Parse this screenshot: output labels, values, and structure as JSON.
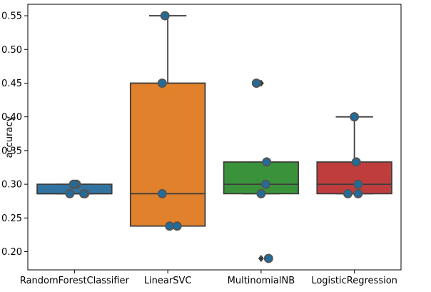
{
  "chart_data": {
    "type": "box",
    "title": "",
    "xlabel": "",
    "ylabel": "accuracy",
    "ylim": [
      0.173,
      0.567
    ],
    "yticks": [
      0.2,
      0.25,
      0.3,
      0.35,
      0.4,
      0.45,
      0.5,
      0.55
    ],
    "ytick_labels": [
      "0.20",
      "0.25",
      "0.30",
      "0.35",
      "0.40",
      "0.45",
      "0.50",
      "0.55"
    ],
    "categories": [
      "RandomForestClassifier",
      "LinearSVC",
      "MultinomialNB",
      "LogisticRegression"
    ],
    "boxes": [
      {
        "q1": 0.286,
        "median": 0.286,
        "q3": 0.3,
        "whisker_low": 0.286,
        "whisker_high": 0.3,
        "outliers": [],
        "color": "#3274a1"
      },
      {
        "q1": 0.238,
        "median": 0.286,
        "q3": 0.45,
        "whisker_low": 0.238,
        "whisker_high": 0.55,
        "outliers": [],
        "color": "#e1812c"
      },
      {
        "q1": 0.286,
        "median": 0.3,
        "q3": 0.333,
        "whisker_low": 0.286,
        "whisker_high": 0.333,
        "outliers": [
          0.45,
          0.19
        ],
        "color": "#3a923a"
      },
      {
        "q1": 0.286,
        "median": 0.3,
        "q3": 0.333,
        "whisker_low": 0.286,
        "whisker_high": 0.4,
        "outliers": [],
        "color": "#c03d3e"
      }
    ],
    "points": [
      {
        "category": 0,
        "values": [
          0.286,
          0.3,
          0.286,
          0.3,
          0.286
        ],
        "offsets": [
          -0.05,
          0.02,
          0.11,
          -0.01,
          0.1
        ]
      },
      {
        "category": 1,
        "values": [
          0.55,
          0.45,
          0.286,
          0.238,
          0.238
        ],
        "offsets": [
          -0.03,
          -0.06,
          -0.06,
          0.02,
          0.1
        ]
      },
      {
        "category": 2,
        "values": [
          0.45,
          0.333,
          0.3,
          0.286,
          0.19
        ],
        "offsets": [
          -0.05,
          0.06,
          0.05,
          0.0,
          0.08
        ]
      },
      {
        "category": 3,
        "values": [
          0.4,
          0.333,
          0.3,
          0.286,
          0.286
        ],
        "offsets": [
          0.0,
          0.02,
          0.04,
          -0.07,
          0.04
        ]
      }
    ],
    "point_color": "#1f6d9c",
    "grid": false,
    "legend": "none"
  }
}
